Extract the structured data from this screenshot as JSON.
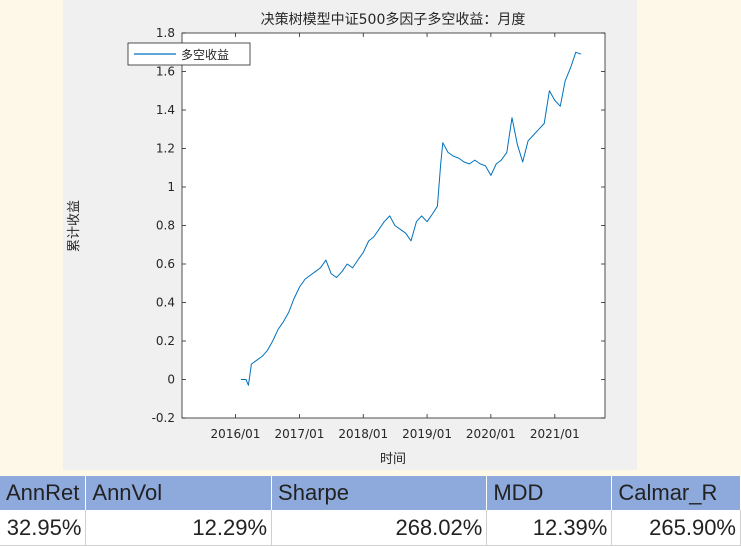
{
  "chart_data": {
    "type": "line",
    "title": "决策树模型中证500多因子多空收益：月度",
    "xlabel": "时间",
    "ylabel": "累计收益",
    "ylim": [
      -0.2,
      1.8
    ],
    "xlim": [
      "2015-03-01",
      "2021-10-15"
    ],
    "x_ticks": [
      "2016/01",
      "2017/01",
      "2018/01",
      "2019/01",
      "2020/01",
      "2021/01"
    ],
    "y_ticks": [
      "-0.2",
      "0",
      "0.2",
      "0.4",
      "0.6",
      "0.8",
      "1",
      "1.2",
      "1.4",
      "1.6",
      "1.8"
    ],
    "legend_position": "top-left",
    "grid": false,
    "series": [
      {
        "name": "多空收益",
        "color": "#0072bd",
        "x": [
          "2016-02-01",
          "2016-03-01",
          "2016-03-15",
          "2016-04-01",
          "2016-05-01",
          "2016-06-01",
          "2016-07-01",
          "2016-08-01",
          "2016-09-01",
          "2016-10-01",
          "2016-11-01",
          "2016-12-01",
          "2017-01-01",
          "2017-02-01",
          "2017-03-01",
          "2017-04-01",
          "2017-05-01",
          "2017-06-01",
          "2017-07-01",
          "2017-08-01",
          "2017-09-01",
          "2017-10-01",
          "2017-11-01",
          "2017-12-01",
          "2018-01-01",
          "2018-02-01",
          "2018-03-01",
          "2018-04-01",
          "2018-05-01",
          "2018-06-01",
          "2018-07-01",
          "2018-08-01",
          "2018-09-01",
          "2018-10-01",
          "2018-11-01",
          "2018-12-01",
          "2019-01-01",
          "2019-02-01",
          "2019-03-01",
          "2019-03-20",
          "2019-04-01",
          "2019-05-01",
          "2019-06-01",
          "2019-07-01",
          "2019-08-01",
          "2019-09-01",
          "2019-10-01",
          "2019-11-01",
          "2019-12-01",
          "2020-01-01",
          "2020-02-01",
          "2020-03-01",
          "2020-04-01",
          "2020-05-01",
          "2020-06-01",
          "2020-07-01",
          "2020-08-01",
          "2020-09-01",
          "2020-10-01",
          "2020-11-01",
          "2020-12-01",
          "2021-01-01",
          "2021-02-01",
          "2021-03-01",
          "2021-04-01",
          "2021-05-01",
          "2021-06-01"
        ],
        "values": [
          0.0,
          0.0,
          -0.03,
          0.08,
          0.1,
          0.12,
          0.15,
          0.2,
          0.26,
          0.3,
          0.35,
          0.42,
          0.48,
          0.52,
          0.54,
          0.56,
          0.58,
          0.62,
          0.55,
          0.53,
          0.56,
          0.6,
          0.58,
          0.62,
          0.66,
          0.72,
          0.74,
          0.78,
          0.82,
          0.85,
          0.8,
          0.78,
          0.76,
          0.72,
          0.82,
          0.85,
          0.82,
          0.86,
          0.9,
          1.12,
          1.23,
          1.18,
          1.16,
          1.15,
          1.13,
          1.12,
          1.14,
          1.12,
          1.11,
          1.06,
          1.12,
          1.14,
          1.18,
          1.36,
          1.22,
          1.13,
          1.24,
          1.27,
          1.3,
          1.33,
          1.5,
          1.45,
          1.42,
          1.55,
          1.62,
          1.7,
          1.69
        ]
      }
    ]
  },
  "table": {
    "headers": [
      "AnnRet",
      "AnnVol",
      "Sharpe",
      "MDD",
      "Calmar_R"
    ],
    "row": [
      "32.95%",
      "12.29%",
      "268.02%",
      "12.39%",
      "265.90%"
    ]
  }
}
